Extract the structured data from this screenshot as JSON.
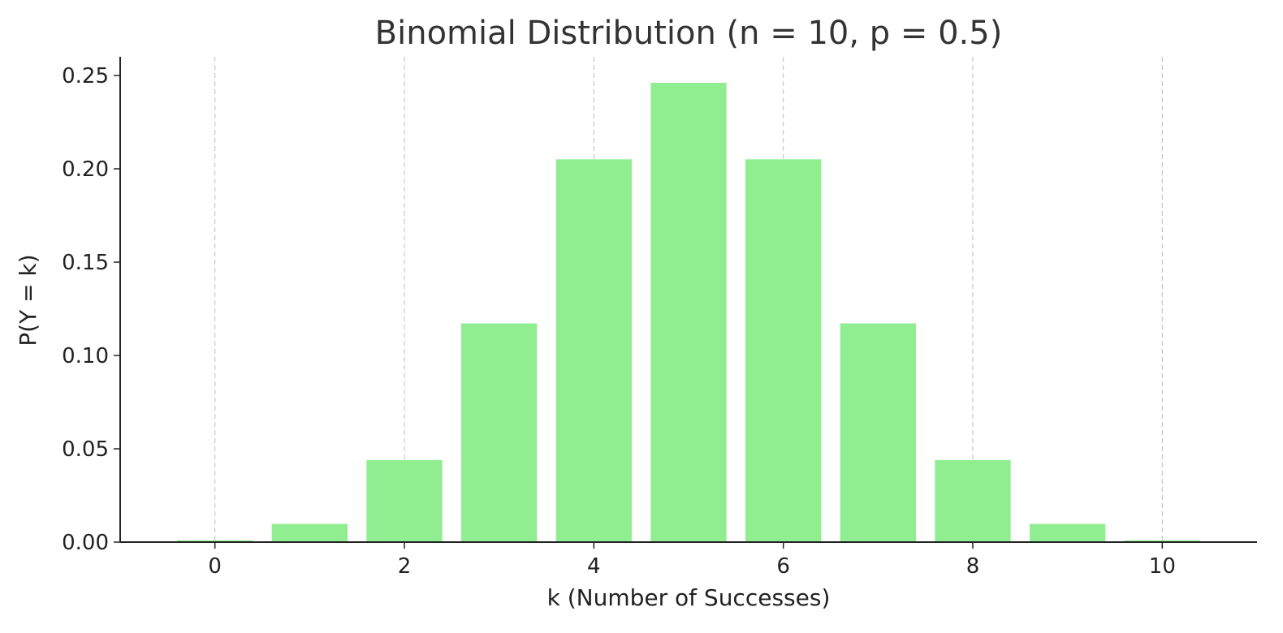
{
  "chart_data": {
    "type": "bar",
    "title": "Binomial Distribution (n = 10, p = 0.5)",
    "xlabel": "k (Number of Successes)",
    "ylabel": "P(Y = k)",
    "x": [
      0,
      1,
      2,
      3,
      4,
      5,
      6,
      7,
      8,
      9,
      10
    ],
    "values": [
      0.00098,
      0.00977,
      0.04395,
      0.11719,
      0.20508,
      0.24609,
      0.20508,
      0.11719,
      0.04395,
      0.00977,
      0.00098
    ],
    "xlim": [
      -1,
      11
    ],
    "ylim": [
      0,
      0.26
    ],
    "xticks": [
      0,
      2,
      4,
      6,
      8,
      10
    ],
    "xtick_labels": [
      "0",
      "2",
      "4",
      "6",
      "8",
      "10"
    ],
    "yticks": [
      0,
      0.05,
      0.1,
      0.15,
      0.2,
      0.25
    ],
    "ytick_labels": [
      "0.00",
      "0.05",
      "0.10",
      "0.15",
      "0.20",
      "0.25"
    ],
    "bar_color": "#90ee90",
    "grid": "vertical dashed",
    "legend": "none"
  }
}
